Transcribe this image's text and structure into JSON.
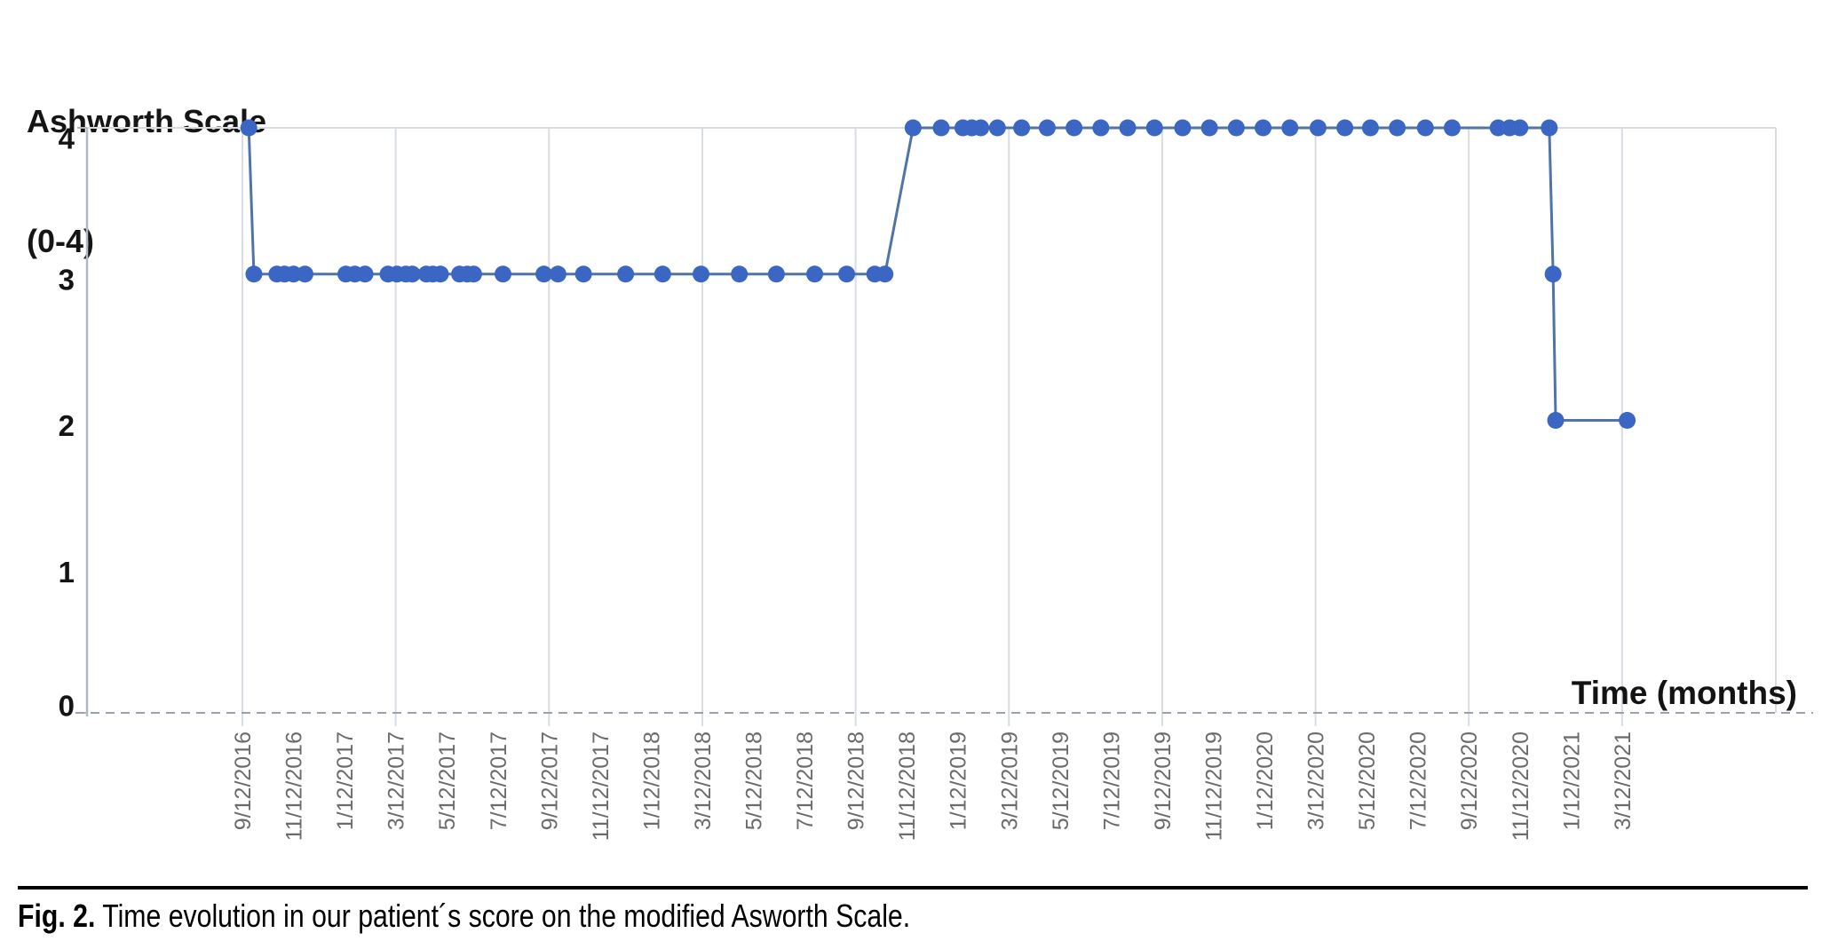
{
  "figure": {
    "y_axis_title_line1": "Ashworth Scale",
    "y_axis_title_line2": "(0-4)",
    "x_axis_title": "Time (months)",
    "caption_prefix": "Fig. 2.",
    "caption_text": " Time evolution in our patient´s score on the modified Asworth Scale."
  },
  "colors": {
    "marker": "#3b66c4",
    "line": "#5174a8",
    "grid": "#d9dde3",
    "axis": "#b2b9c3",
    "zero_line": "#9aa1ab",
    "x_tick_label": "#6b6b6b",
    "y_tick_label": "#141414"
  },
  "chart_data": {
    "type": "line",
    "title": "",
    "xlabel": "Time (months)",
    "ylabel": "Ashworth Scale (0-4)",
    "ylim": [
      0,
      4
    ],
    "y_ticks": [
      0,
      1,
      2,
      3,
      4
    ],
    "x_tick_interval_months": 2,
    "gridline_every_n_ticks": 3,
    "grid": "vertical-only",
    "legend": "none",
    "zero_axis_style": "dashed",
    "x_tick_labels": [
      "9/12/2016",
      "11/12/2016",
      "1/12/2017",
      "3/12/2017",
      "5/12/2017",
      "7/12/2017",
      "9/12/2017",
      "11/12/2017",
      "1/12/2018",
      "3/12/2018",
      "5/12/2018",
      "7/12/2018",
      "9/12/2018",
      "11/12/2018",
      "1/12/2019",
      "3/12/2019",
      "5/12/2019",
      "7/12/2019",
      "9/12/2019",
      "11/12/2019",
      "1/12/2020",
      "3/12/2020",
      "5/12/2020",
      "7/12/2020",
      "9/12/2020",
      "11/12/2020",
      "1/12/2021",
      "3/12/2021"
    ],
    "points_unit": "months after 9/12/2016",
    "series": [
      {
        "name": "Modified Ashworth Scale score",
        "points": [
          [
            0.25,
            4
          ],
          [
            0.45,
            3
          ],
          [
            1.35,
            3
          ],
          [
            1.65,
            3
          ],
          [
            2.0,
            3
          ],
          [
            2.45,
            3
          ],
          [
            4.05,
            3
          ],
          [
            4.4,
            3
          ],
          [
            4.8,
            3
          ],
          [
            5.7,
            3
          ],
          [
            6.05,
            3
          ],
          [
            6.4,
            3
          ],
          [
            6.65,
            3
          ],
          [
            7.2,
            3
          ],
          [
            7.45,
            3
          ],
          [
            7.75,
            3
          ],
          [
            8.5,
            3
          ],
          [
            8.8,
            3
          ],
          [
            9.05,
            3
          ],
          [
            10.2,
            3
          ],
          [
            11.8,
            3
          ],
          [
            12.35,
            3
          ],
          [
            13.35,
            3
          ],
          [
            15.0,
            3
          ],
          [
            16.45,
            3
          ],
          [
            17.95,
            3
          ],
          [
            19.45,
            3
          ],
          [
            20.9,
            3
          ],
          [
            22.4,
            3
          ],
          [
            23.65,
            3
          ],
          [
            24.75,
            3
          ],
          [
            25.15,
            3
          ],
          [
            26.25,
            4
          ],
          [
            27.35,
            4
          ],
          [
            28.2,
            4
          ],
          [
            28.55,
            4
          ],
          [
            28.9,
            4
          ],
          [
            29.55,
            4
          ],
          [
            30.5,
            4
          ],
          [
            31.5,
            4
          ],
          [
            32.55,
            4
          ],
          [
            33.6,
            4
          ],
          [
            34.65,
            4
          ],
          [
            35.7,
            4
          ],
          [
            36.8,
            4
          ],
          [
            37.85,
            4
          ],
          [
            38.9,
            4
          ],
          [
            39.95,
            4
          ],
          [
            41.0,
            4
          ],
          [
            42.1,
            4
          ],
          [
            43.15,
            4
          ],
          [
            44.15,
            4
          ],
          [
            45.2,
            4
          ],
          [
            46.3,
            4
          ],
          [
            47.35,
            4
          ],
          [
            49.15,
            4
          ],
          [
            49.6,
            4
          ],
          [
            50.0,
            4
          ],
          [
            51.15,
            4
          ],
          [
            51.3,
            3
          ],
          [
            51.4,
            2
          ],
          [
            54.2,
            2
          ]
        ]
      }
    ]
  }
}
